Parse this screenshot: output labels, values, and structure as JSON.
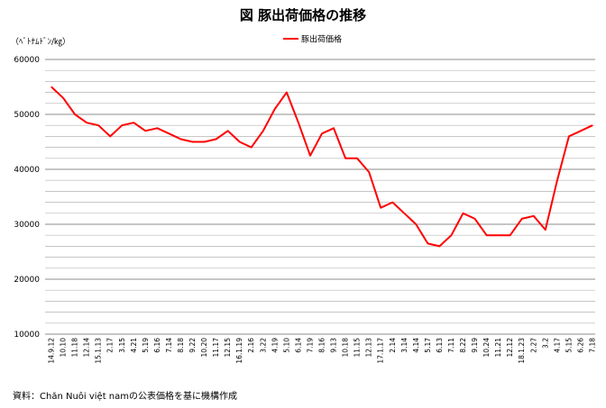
{
  "chart_data": {
    "type": "line",
    "title": "図 豚出荷価格の推移",
    "ylabel": "（ﾍﾞﾄﾅﾑﾄﾞﾝ/㎏）",
    "xlabel": "",
    "ylim": [
      10000,
      60000
    ],
    "yticks": [
      10000,
      20000,
      30000,
      40000,
      50000,
      60000
    ],
    "grid": true,
    "legend_position": "top-center",
    "source": "資料：Chăn Nuôi việt namの公表価格を基に機構作成",
    "categories": [
      "14.9.12",
      "10.10",
      "11.18",
      "12.14",
      "15.1.13",
      "2.17",
      "3.15",
      "4.21",
      "5.19",
      "6.16",
      "7.14",
      "8.18",
      "9.22",
      "10.20",
      "11.17",
      "12.15",
      "16.1.19",
      "2.16",
      "3.22",
      "4.19",
      "5.10",
      "6.14",
      "7.19",
      "8.16",
      "9.13",
      "10.18",
      "11.15",
      "12.13",
      "17.1.17",
      "2.14",
      "3.14",
      "4.14",
      "5.17",
      "6.13",
      "7.11",
      "8.22",
      "9.19",
      "10.24",
      "11.21",
      "12.12",
      "18.1.23",
      "2.27",
      "3.2",
      "4.17",
      "5.15",
      "6.26",
      "7.18"
    ],
    "series": [
      {
        "name": "豚出荷価格",
        "color": "#ff0000",
        "values": [
          55000,
          53000,
          50000,
          48500,
          48000,
          46000,
          48000,
          48500,
          47000,
          47500,
          46500,
          45500,
          45000,
          45000,
          45500,
          47000,
          45000,
          44000,
          47000,
          51000,
          54000,
          48500,
          42500,
          46500,
          47500,
          42000,
          42000,
          39500,
          33000,
          34000,
          32000,
          30000,
          26500,
          26000,
          28000,
          32000,
          31000,
          28000,
          28000,
          28000,
          31000,
          31500,
          29000,
          38000,
          46000,
          47000,
          48000
        ]
      }
    ]
  }
}
